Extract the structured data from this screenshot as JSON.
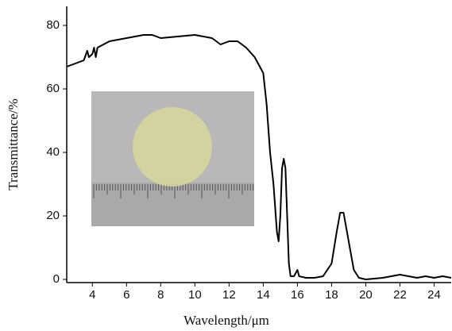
{
  "chart_data": {
    "type": "line",
    "x_label": "Wavelength/μm",
    "y_label": "Transmittance/%",
    "xlim": [
      2.5,
      25
    ],
    "xticks": [
      4,
      6,
      8,
      10,
      12,
      14,
      16,
      18,
      20,
      22,
      24
    ],
    "ylim": [
      -1,
      86
    ],
    "yticks": [
      0,
      20,
      40,
      60,
      80
    ],
    "series": [
      {
        "color": "#000000",
        "x": [
          2.5,
          3,
          3.5,
          3.7,
          3.8,
          4,
          4.1,
          4.2,
          4.3,
          5,
          6,
          7,
          7.5,
          8,
          9,
          10,
          11,
          11.5,
          12,
          12.5,
          13,
          13.5,
          14,
          14.2,
          14.4,
          14.6,
          14.8,
          14.9,
          15.0,
          15.1,
          15.2,
          15.3,
          15.4,
          15.5,
          15.6,
          15.8,
          16,
          16.1,
          16.5,
          17,
          17.5,
          18,
          18.3,
          18.5,
          18.7,
          19,
          19.3,
          19.6,
          20,
          21,
          22,
          22.5,
          23,
          23.5,
          24,
          24.5,
          25
        ],
        "values": [
          67,
          68,
          69,
          72,
          70,
          71,
          73,
          70,
          73,
          75,
          76,
          77,
          77,
          76,
          76.5,
          77,
          76,
          74,
          75,
          75,
          73,
          70,
          65,
          55,
          40,
          30,
          15,
          12,
          20,
          35,
          38,
          35,
          20,
          5,
          1,
          1,
          3,
          1,
          0.5,
          0.5,
          1,
          5,
          15,
          21,
          21,
          12,
          3,
          0.5,
          0,
          0.5,
          1.5,
          1,
          0.5,
          1,
          0.5,
          1,
          0.5
        ]
      }
    ]
  }
}
